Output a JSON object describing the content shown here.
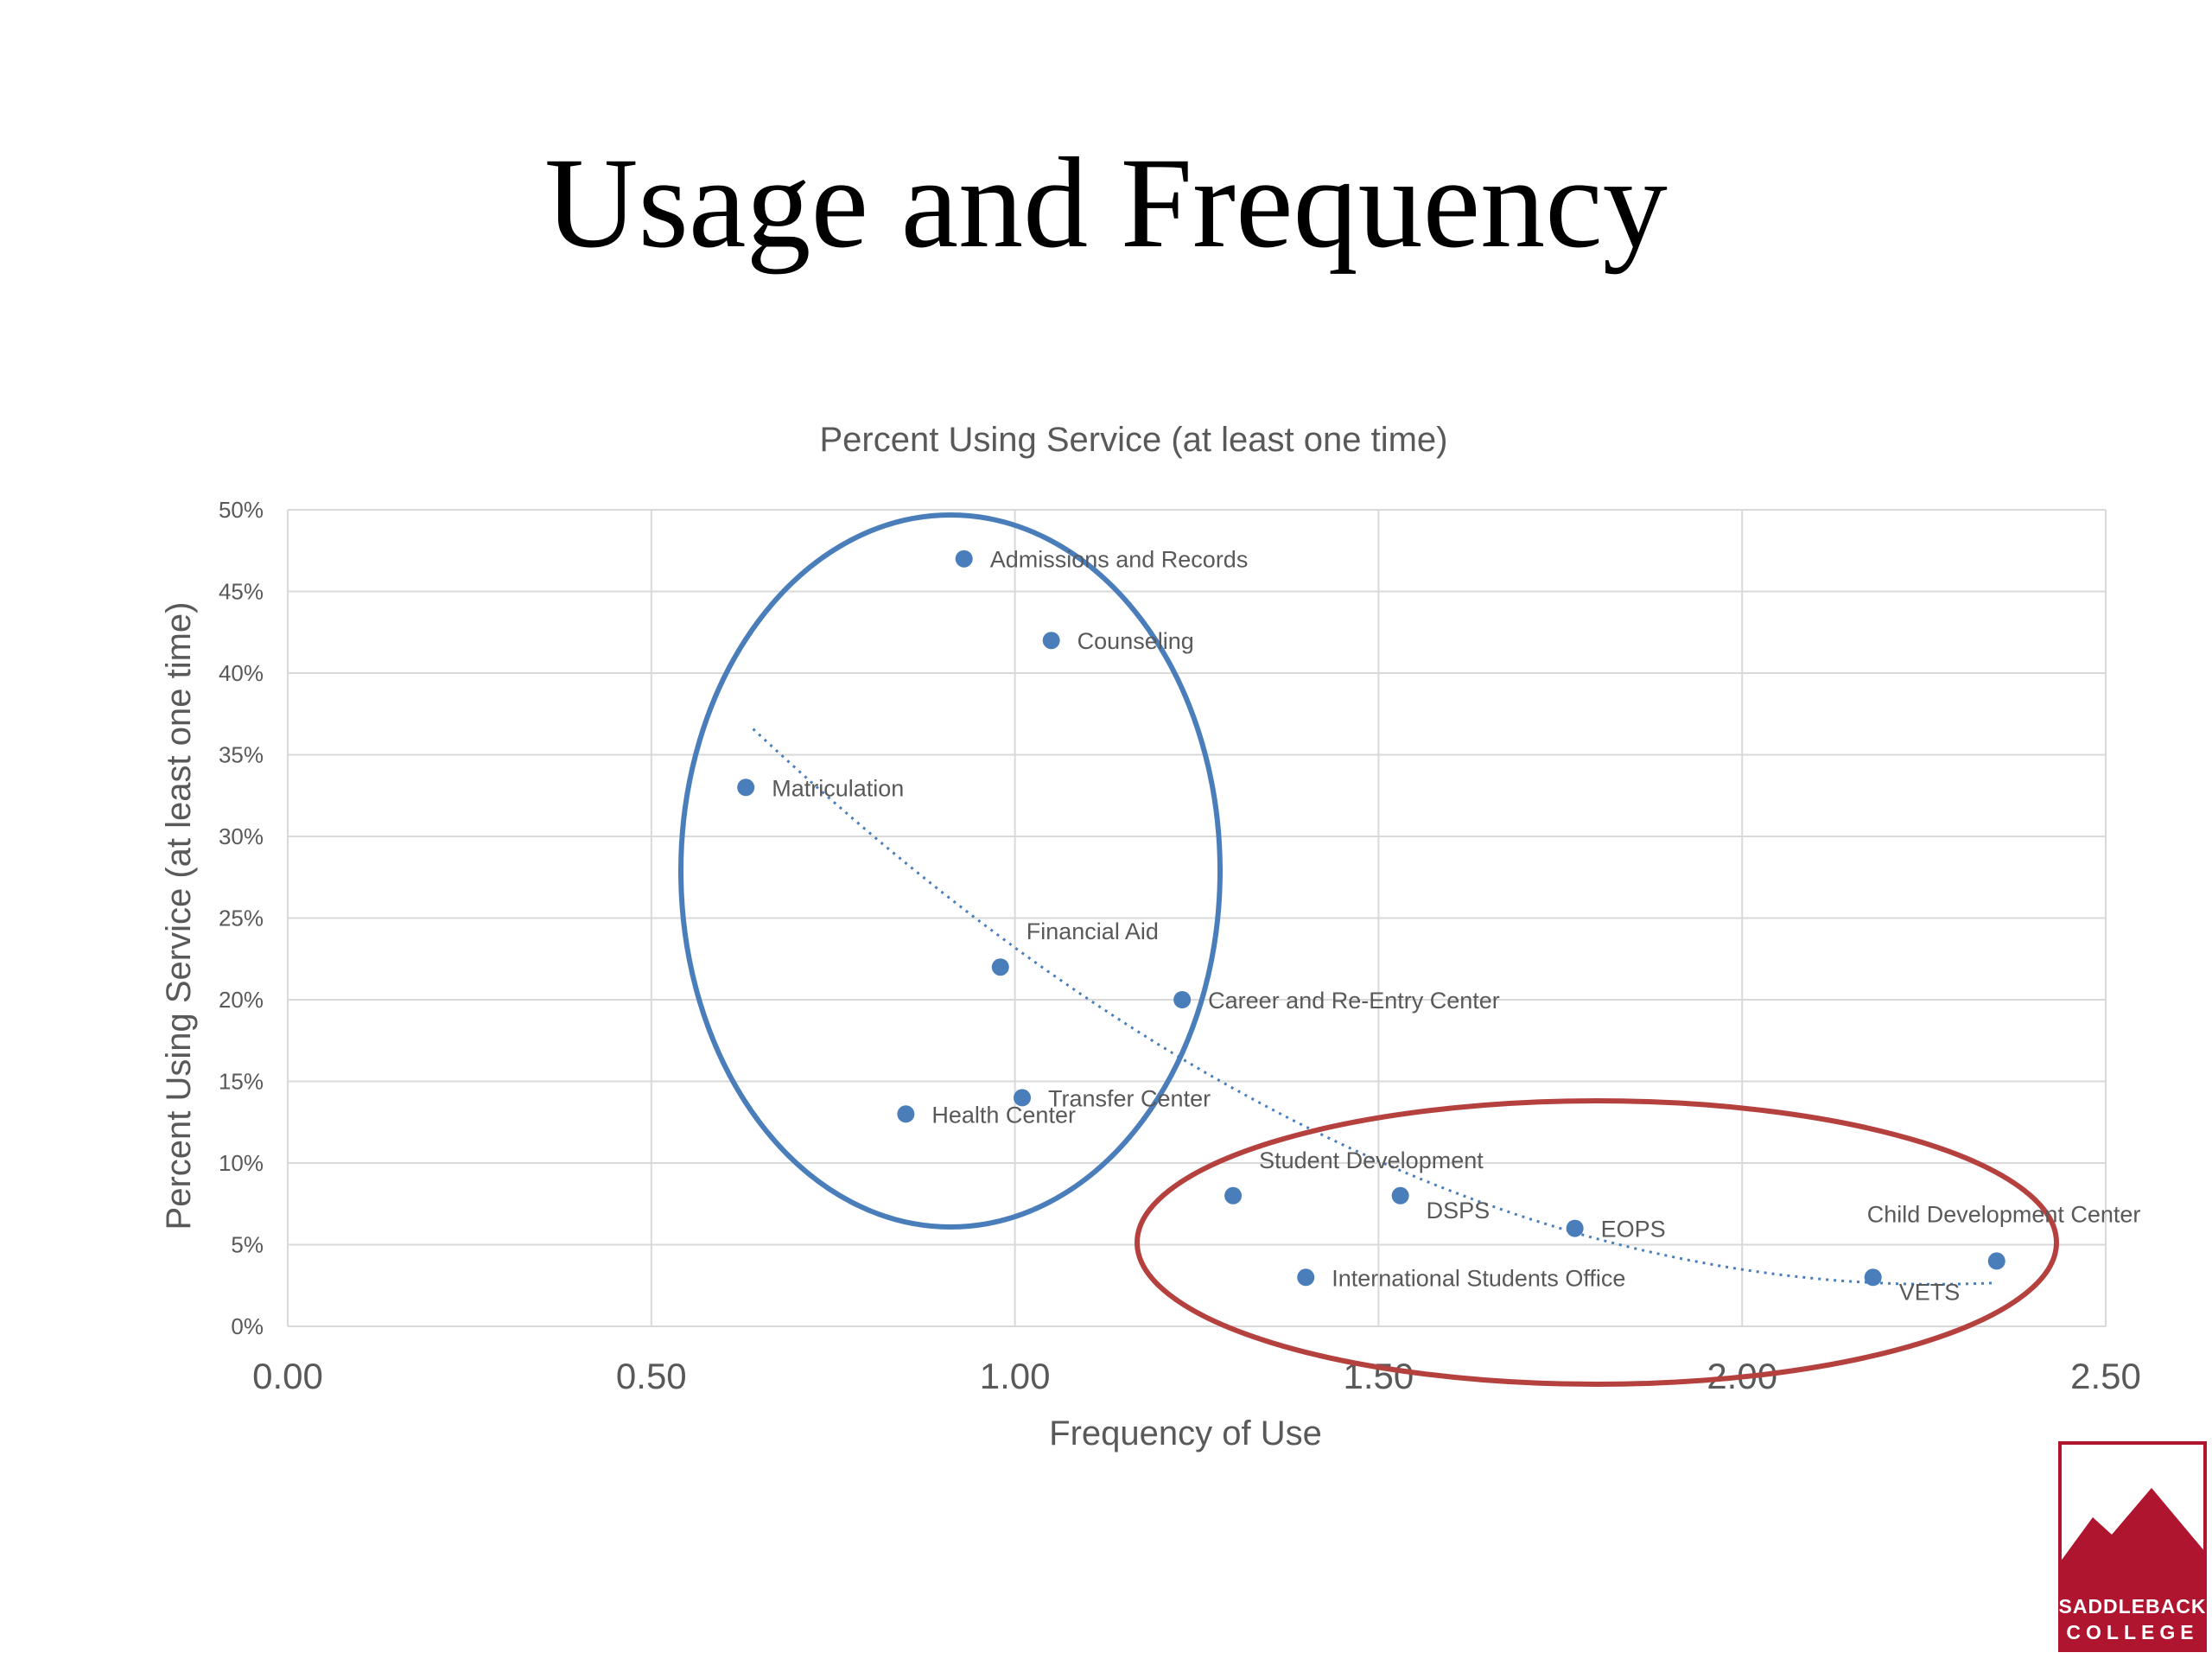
{
  "slide": {
    "title": "Usage and Frequency"
  },
  "colors": {
    "point": "#4a7ebb",
    "trend": "#4a7ebb",
    "ellipse_blue": "#4a7ebb",
    "ellipse_red": "#b5413f",
    "grid": "#d9d9d9",
    "text": "#595959",
    "logo_red": "#b0152f"
  },
  "chart_data": {
    "type": "scatter",
    "title": "Percent Using Service (at least one time)",
    "xlabel": "Frequency of Use",
    "ylabel": "Percent Using Service (at least one time)",
    "xlim": [
      0,
      2.5
    ],
    "ylim": [
      0,
      0.5
    ],
    "x_ticks": [
      "0.00",
      "0.50",
      "1.00",
      "1.50",
      "2.00",
      "2.50"
    ],
    "y_ticks": [
      "0%",
      "5%",
      "10%",
      "15%",
      "20%",
      "25%",
      "30%",
      "35%",
      "40%",
      "45%",
      "50%"
    ],
    "grid": true,
    "points": [
      {
        "label": "Admissions and Records",
        "x": 0.93,
        "y": 0.47
      },
      {
        "label": "Counseling",
        "x": 1.05,
        "y": 0.42
      },
      {
        "label": "Matriculation",
        "x": 0.63,
        "y": 0.33
      },
      {
        "label": "Financial Aid",
        "x": 0.98,
        "y": 0.22
      },
      {
        "label": "Career and Re-Entry Center",
        "x": 1.23,
        "y": 0.2
      },
      {
        "label": "Transfer Center",
        "x": 1.01,
        "y": 0.14
      },
      {
        "label": "Health Center",
        "x": 0.85,
        "y": 0.13
      },
      {
        "label": "Student Development",
        "x": 1.3,
        "y": 0.08
      },
      {
        "label": "DSPS",
        "x": 1.53,
        "y": 0.08
      },
      {
        "label": "EOPS",
        "x": 1.77,
        "y": 0.06
      },
      {
        "label": "International Students Office",
        "x": 1.4,
        "y": 0.03
      },
      {
        "label": "VETS",
        "x": 2.18,
        "y": 0.03
      },
      {
        "label": "Child Development Center",
        "x": 2.35,
        "y": 0.04
      }
    ],
    "trendline": {
      "style": "dotted",
      "type": "polynomial",
      "x_range": [
        0.64,
        2.35
      ]
    }
  },
  "logo": {
    "line1": "SADDLEBACK",
    "line2": "COLLEGE"
  }
}
